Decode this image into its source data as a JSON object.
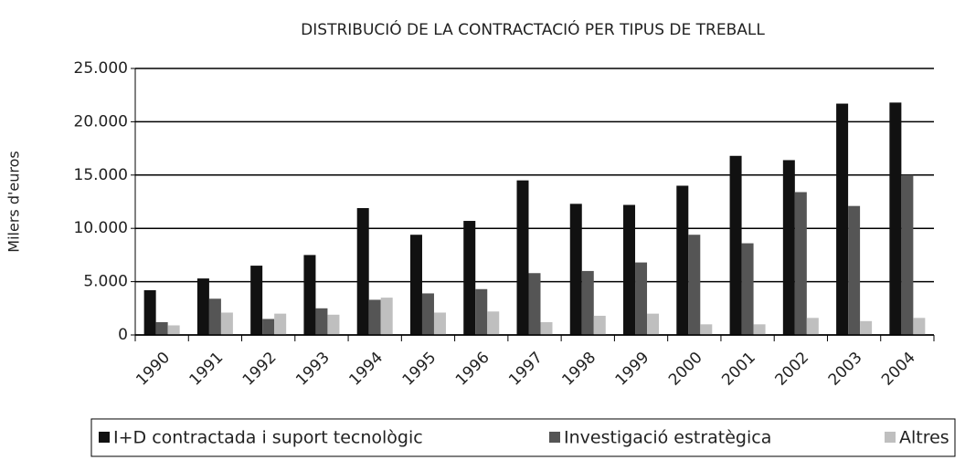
{
  "chart_data": {
    "type": "bar",
    "title": "DISTRIBUCIÓ DE LA CONTRACTACIÓ PER TIPUS DE TREBALL",
    "y_axis_label": "Milers d'euros",
    "categories": [
      "1990",
      "1991",
      "1992",
      "1993",
      "1994",
      "1995",
      "1996",
      "1997",
      "1998",
      "1999",
      "2000",
      "2001",
      "2002",
      "2003",
      "2004"
    ],
    "series": [
      {
        "name": "I+D contractada i suport tecnològic",
        "color": "#111111",
        "values": [
          4200,
          5300,
          6500,
          7500,
          11900,
          9400,
          10700,
          14500,
          12300,
          12200,
          14000,
          16800,
          16400,
          21700,
          21800
        ]
      },
      {
        "name": "Investigació estratègica",
        "color": "#555555",
        "values": [
          1200,
          3400,
          1500,
          2500,
          3300,
          3900,
          4300,
          5800,
          6000,
          6800,
          9400,
          8600,
          13400,
          12100,
          15000
        ]
      },
      {
        "name": "Altres",
        "color": "#bfbfbf",
        "values": [
          900,
          2100,
          2000,
          1900,
          3500,
          2100,
          2200,
          1200,
          1800,
          2000,
          1000,
          1000,
          1600,
          1300,
          1600
        ]
      }
    ],
    "ylim": [
      0,
      25000
    ],
    "yticks": [
      0,
      {
        "value": 5000,
        "label": "5.000"
      },
      {
        "value": 10000,
        "label": "10.000"
      },
      {
        "value": 15000,
        "label": "15.000"
      },
      {
        "value": 20000,
        "label": "20.000"
      },
      {
        "value": 25000,
        "label": "25.000"
      }
    ],
    "grid": true,
    "legend": "bottom"
  }
}
